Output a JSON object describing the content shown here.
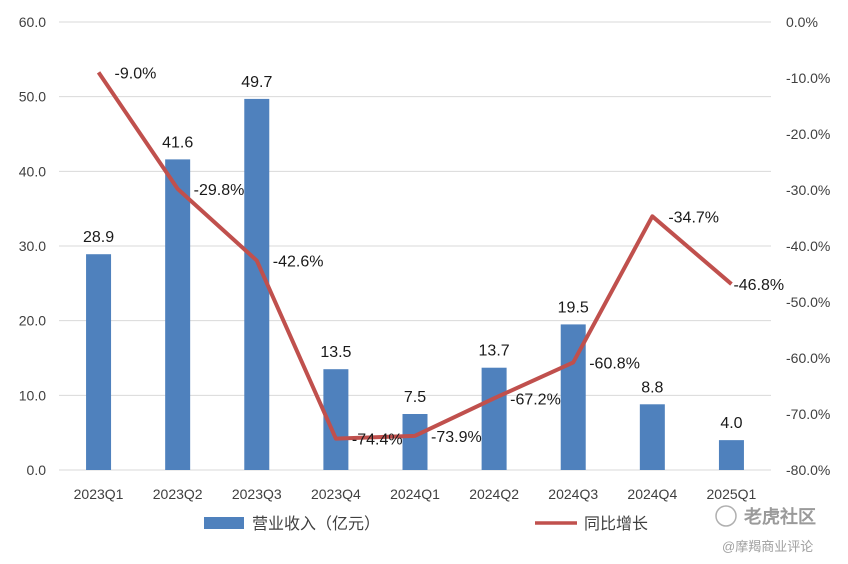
{
  "chart_data": {
    "type": "bar+line",
    "categories": [
      "2023Q1",
      "2023Q2",
      "2023Q3",
      "2023Q4",
      "2024Q1",
      "2024Q2",
      "2024Q3",
      "2024Q4",
      "2025Q1"
    ],
    "series": [
      {
        "name": "营业收入（亿元）",
        "type": "bar",
        "axis": "left",
        "color": "#4F81BD",
        "values": [
          28.9,
          41.6,
          49.7,
          13.5,
          7.5,
          13.7,
          19.5,
          8.8,
          4.0
        ],
        "labels": [
          "28.9",
          "41.6",
          "49.7",
          "13.5",
          "7.5",
          "13.7",
          "19.5",
          "8.8",
          "4.0"
        ]
      },
      {
        "name": "同比增长",
        "type": "line",
        "axis": "right",
        "color": "#C0504D",
        "values": [
          -9.0,
          -29.8,
          -42.6,
          -74.4,
          -73.9,
          -67.2,
          -60.8,
          -34.7,
          -46.8
        ],
        "labels": [
          "-9.0%",
          "-29.8%",
          "-42.6%",
          "-74.4%",
          "-73.9%",
          "-67.2%",
          "-60.8%",
          "-34.7%",
          "-46.8%"
        ]
      }
    ],
    "left_axis": {
      "ylim": [
        0,
        60
      ],
      "ticks": [
        0,
        10,
        20,
        30,
        40,
        50,
        60
      ],
      "tick_labels": [
        "0.0",
        "10.0",
        "20.0",
        "30.0",
        "40.0",
        "50.0",
        "60.0"
      ]
    },
    "right_axis": {
      "ylim": [
        -80,
        0
      ],
      "ticks": [
        -80,
        -70,
        -60,
        -50,
        -40,
        -30,
        -20,
        -10,
        0
      ],
      "tick_labels": [
        "-80.0%",
        "-70.0%",
        "-60.0%",
        "-50.0%",
        "-40.0%",
        "-30.0%",
        "-20.0%",
        "-10.0%",
        "0.0%"
      ]
    },
    "grid": true,
    "legend_position": "bottom"
  },
  "watermark": {
    "logo_text": "老虎社区",
    "sub_text": "@摩羯商业评论"
  }
}
